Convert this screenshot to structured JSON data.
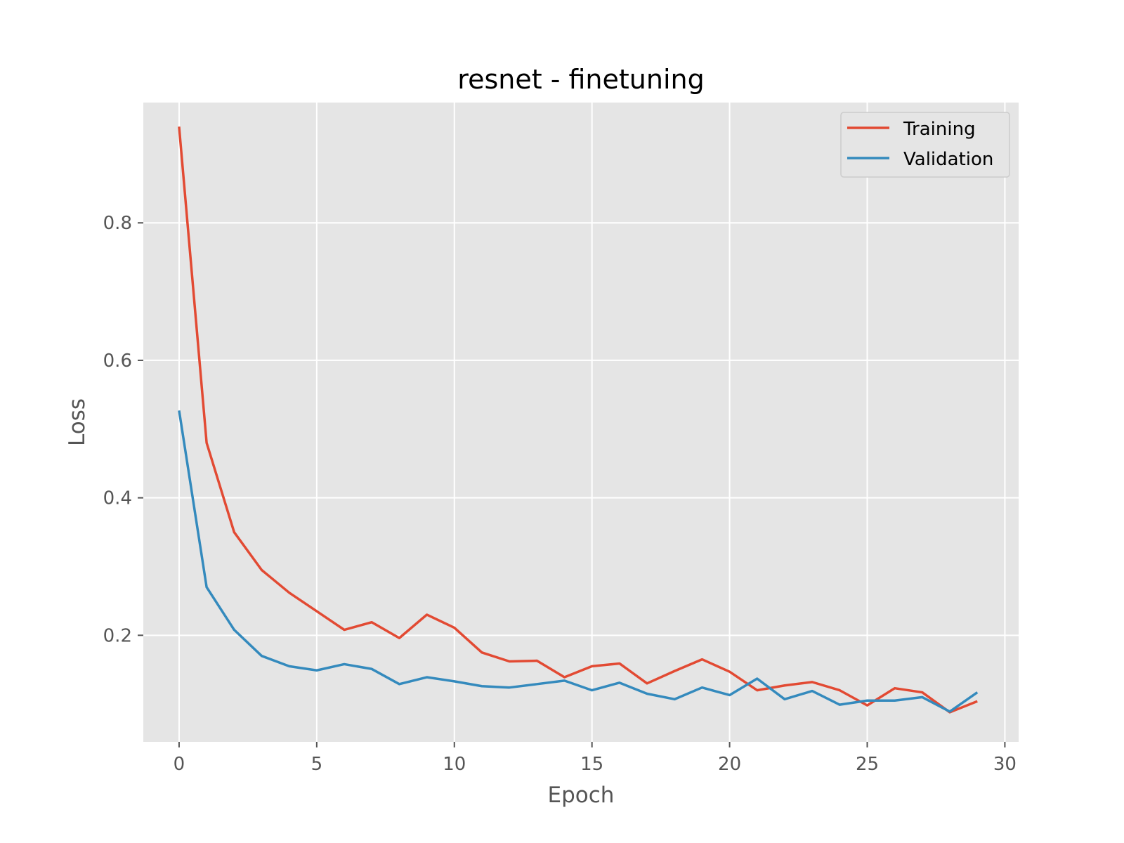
{
  "chart_data": {
    "type": "line",
    "title": "resnet - finetuning",
    "xlabel": "Epoch",
    "ylabel": "Loss",
    "xlim": [
      -1.3,
      30.5
    ],
    "ylim": [
      0.045,
      0.975
    ],
    "xticks": [
      0,
      5,
      10,
      15,
      20,
      25,
      30
    ],
    "yticks": [
      0.2,
      0.4,
      0.6,
      0.8
    ],
    "xtick_labels": [
      "0",
      "5",
      "10",
      "15",
      "20",
      "25",
      "30"
    ],
    "ytick_labels": [
      "0.2",
      "0.4",
      "0.6",
      "0.8"
    ],
    "grid": true,
    "legend_position": "top-right",
    "x": [
      0,
      1,
      2,
      3,
      4,
      5,
      6,
      7,
      8,
      9,
      10,
      11,
      12,
      13,
      14,
      15,
      16,
      17,
      18,
      19,
      20,
      21,
      22,
      23,
      24,
      25,
      26,
      27,
      28,
      29
    ],
    "series": [
      {
        "name": "Training",
        "color": "#E24A33",
        "values": [
          0.94,
          0.48,
          0.35,
          0.295,
          0.262,
          0.235,
          0.208,
          0.219,
          0.196,
          0.23,
          0.211,
          0.175,
          0.162,
          0.163,
          0.139,
          0.155,
          0.159,
          0.13,
          0.148,
          0.165,
          0.147,
          0.12,
          0.127,
          0.132,
          0.12,
          0.098,
          0.123,
          0.117,
          0.088,
          0.104
        ]
      },
      {
        "name": "Validation",
        "color": "#348ABD",
        "values": [
          0.527,
          0.27,
          0.208,
          0.17,
          0.155,
          0.149,
          0.158,
          0.151,
          0.129,
          0.139,
          0.133,
          0.126,
          0.124,
          0.129,
          0.134,
          0.12,
          0.131,
          0.115,
          0.107,
          0.124,
          0.113,
          0.137,
          0.107,
          0.119,
          0.099,
          0.105,
          0.105,
          0.11,
          0.089,
          0.117
        ]
      }
    ]
  },
  "style": {
    "plot_background": "#E5E5E5",
    "grid_color": "#FFFFFF",
    "tick_color": "#555555"
  }
}
